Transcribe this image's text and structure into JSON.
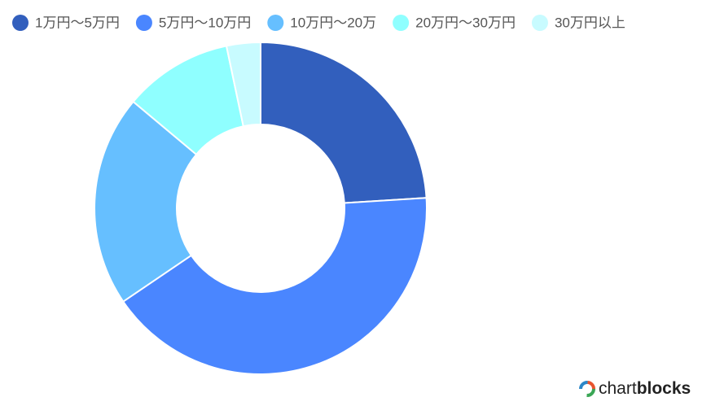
{
  "chart_data": {
    "type": "donut",
    "categories": [
      "1万円～5万円",
      "5万円～10万円",
      "10万円～20万",
      "20万円～30万円",
      "30万円以上"
    ],
    "values": [
      24,
      41.5,
      20.6,
      10.6,
      3.3
    ],
    "colors": [
      "#325fbd",
      "#4a86ff",
      "#66bfff",
      "#8fffff",
      "#c8fbff"
    ],
    "legend": "top"
  },
  "logo": {
    "light": "chart",
    "bold": "blocks"
  }
}
